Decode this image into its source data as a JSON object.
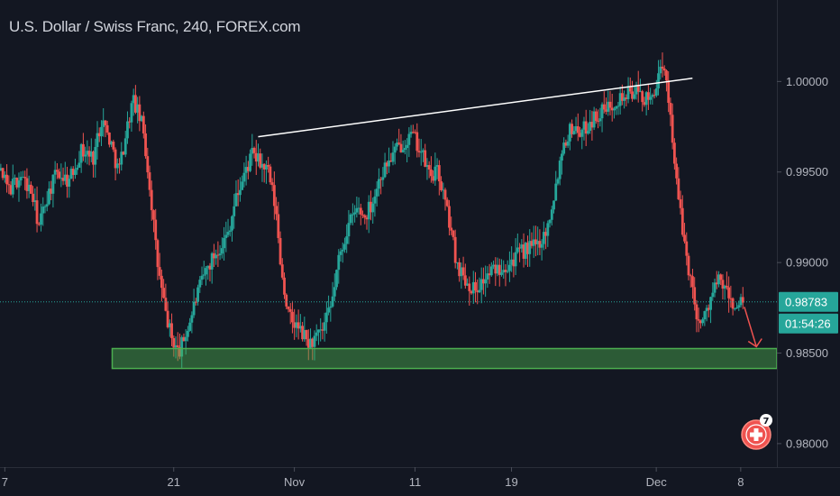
{
  "header": {
    "title": "U.S. Dollar / Swiss Franc, 240, FOREX.com"
  },
  "colors": {
    "background": "#131722",
    "up": "#26a69a",
    "down": "#ef5350",
    "axis_text": "#b2b5be",
    "trendline": "#ffffff",
    "support_zone": "#4caf50",
    "price_tag": "#26a69a",
    "arrow": "#ef5350"
  },
  "badge": {
    "count": "7",
    "icon": "swiss-flag-icon"
  },
  "chart_data": {
    "type": "candlestick",
    "title": "U.S. Dollar / Swiss Franc, 240, FOREX.com",
    "ylim": [
      0.9787,
      1.0045
    ],
    "y_ticks": [
      {
        "value": 1.0,
        "label": "1.00000"
      },
      {
        "value": 0.995,
        "label": "0.99500"
      },
      {
        "value": 0.99,
        "label": "0.99000"
      },
      {
        "value": 0.985,
        "label": "0.98500"
      },
      {
        "value": 0.98,
        "label": "0.98000"
      }
    ],
    "x_ticks": [
      {
        "x": 0,
        "label": "7"
      },
      {
        "x": 14,
        "label": "21"
      },
      {
        "x": 24,
        "label": "Nov"
      },
      {
        "x": 34,
        "label": "11"
      },
      {
        "x": 42,
        "label": "19"
      },
      {
        "x": 54,
        "label": "Dec"
      },
      {
        "x": 61,
        "label": "8"
      }
    ],
    "xlim": [
      -0.4,
      64
    ],
    "last_price": {
      "value": 0.98783,
      "label": "0.98783"
    },
    "countdown": {
      "label": "01:54:26"
    },
    "path_points": [
      [
        -3.0,
        0.999
      ],
      [
        -2.4,
        0.9985
      ],
      [
        -1.5,
        0.9975
      ],
      [
        -0.6,
        0.9955
      ],
      [
        0.5,
        0.994
      ],
      [
        1.5,
        0.9948
      ],
      [
        2.4,
        0.9938
      ],
      [
        3.0,
        0.992
      ],
      [
        3.6,
        0.9935
      ],
      [
        4.5,
        0.995
      ],
      [
        5.5,
        0.9945
      ],
      [
        6.5,
        0.9962
      ],
      [
        7.5,
        0.9958
      ],
      [
        8.2,
        0.998
      ],
      [
        9.0,
        0.9965
      ],
      [
        9.6,
        0.995
      ],
      [
        10.4,
        0.9978
      ],
      [
        10.8,
        0.999
      ],
      [
        11.6,
        0.9975
      ],
      [
        12.3,
        0.9935
      ],
      [
        12.8,
        0.99
      ],
      [
        13.4,
        0.9875
      ],
      [
        14.0,
        0.9858
      ],
      [
        14.6,
        0.985
      ],
      [
        15.4,
        0.9865
      ],
      [
        16.0,
        0.988
      ],
      [
        16.8,
        0.9895
      ],
      [
        17.6,
        0.9905
      ],
      [
        18.6,
        0.9915
      ],
      [
        19.3,
        0.9935
      ],
      [
        20.1,
        0.995
      ],
      [
        20.7,
        0.996
      ],
      [
        21.3,
        0.9955
      ],
      [
        22.0,
        0.995
      ],
      [
        22.6,
        0.993
      ],
      [
        23.1,
        0.9895
      ],
      [
        23.7,
        0.987
      ],
      [
        24.3,
        0.9865
      ],
      [
        24.9,
        0.986
      ],
      [
        25.4,
        0.9855
      ],
      [
        26.0,
        0.9858
      ],
      [
        26.5,
        0.9862
      ],
      [
        27.2,
        0.9875
      ],
      [
        27.8,
        0.99
      ],
      [
        28.6,
        0.992
      ],
      [
        29.4,
        0.993
      ],
      [
        30.0,
        0.9925
      ],
      [
        30.7,
        0.9935
      ],
      [
        31.3,
        0.9948
      ],
      [
        31.9,
        0.9955
      ],
      [
        32.6,
        0.9962
      ],
      [
        33.4,
        0.9968
      ],
      [
        34.0,
        0.997
      ],
      [
        34.6,
        0.9962
      ],
      [
        35.4,
        0.9948
      ],
      [
        36.1,
        0.995
      ],
      [
        36.6,
        0.9935
      ],
      [
        37.1,
        0.992
      ],
      [
        37.6,
        0.99
      ],
      [
        38.4,
        0.989
      ],
      [
        39.1,
        0.9885
      ],
      [
        39.8,
        0.989
      ],
      [
        40.5,
        0.9895
      ],
      [
        41.3,
        0.9898
      ],
      [
        42.0,
        0.99
      ],
      [
        42.8,
        0.9905
      ],
      [
        43.6,
        0.9908
      ],
      [
        44.3,
        0.991
      ],
      [
        45.1,
        0.9918
      ],
      [
        45.9,
        0.9945
      ],
      [
        46.4,
        0.9965
      ],
      [
        47.2,
        0.9975
      ],
      [
        48.0,
        0.9972
      ],
      [
        48.7,
        0.9978
      ],
      [
        49.4,
        0.9982
      ],
      [
        50.1,
        0.9985
      ],
      [
        50.8,
        0.999
      ],
      [
        51.6,
        0.9992
      ],
      [
        52.3,
        0.9995
      ],
      [
        53.0,
        0.9992
      ],
      [
        53.6,
        0.9988
      ],
      [
        54.1,
        0.9998
      ],
      [
        54.6,
        1.0005
      ],
      [
        55.0,
        1.0002
      ],
      [
        55.4,
        0.9978
      ],
      [
        55.9,
        0.994
      ],
      [
        56.4,
        0.9915
      ],
      [
        56.9,
        0.9895
      ],
      [
        57.4,
        0.9875
      ],
      [
        57.9,
        0.9865
      ],
      [
        58.4,
        0.9875
      ],
      [
        58.9,
        0.9885
      ],
      [
        59.4,
        0.989
      ],
      [
        59.9,
        0.9885
      ],
      [
        60.4,
        0.9878
      ],
      [
        60.9,
        0.9874
      ],
      [
        61.3,
        0.9878
      ]
    ],
    "trendline": {
      "from": {
        "x": 21.0,
        "y": 0.99695
      },
      "to": {
        "x": 57.0,
        "y": 1.00018
      }
    },
    "support_zone": {
      "x_from": 8.9,
      "x_to": 65,
      "y_low": 0.98415,
      "y_high": 0.98525
    },
    "arrow": {
      "from": {
        "x": 61.3,
        "y": 0.98755
      },
      "to": {
        "x": 62.3,
        "y": 0.98535
      }
    }
  }
}
